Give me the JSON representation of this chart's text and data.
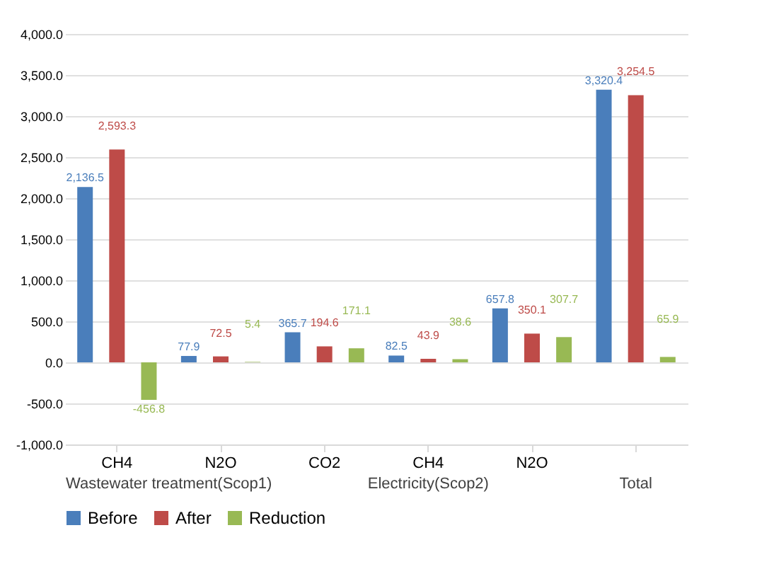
{
  "chart_data": {
    "type": "bar",
    "categories": [
      "CH4",
      "N2O",
      "CO2",
      "CH4",
      "N2O",
      null
    ],
    "series": [
      {
        "name": "Before",
        "color": "#4a7ebb",
        "values": [
          2136.5,
          77.9,
          365.7,
          82.5,
          657.8,
          3320.4
        ],
        "value_labels": [
          "2,136.5",
          "77.9",
          "365.7",
          "82.5",
          "657.8",
          "3,320.4"
        ]
      },
      {
        "name": "After",
        "color": "#be4b48",
        "values": [
          2593.3,
          72.5,
          194.6,
          43.9,
          350.1,
          3254.5
        ],
        "value_labels": [
          "2,593.3",
          "72.5",
          "194.6",
          "43.9",
          "350.1",
          "3,254.5"
        ]
      },
      {
        "name": "Reduction",
        "color": "#98b954",
        "values": [
          -456.8,
          5.4,
          171.1,
          38.6,
          307.7,
          65.9
        ],
        "value_labels": [
          "-456.8",
          "5.4",
          "171.1",
          "38.6",
          "307.7",
          "65.9"
        ]
      }
    ],
    "ylim": [
      -1000,
      4000
    ],
    "yticks": [
      {
        "value": -1000,
        "label": "-1,000.0"
      },
      {
        "value": -500,
        "label": "-500.0"
      },
      {
        "value": 0,
        "label": "0.0"
      },
      {
        "value": 500,
        "label": "500.0"
      },
      {
        "value": 1000,
        "label": "1,000.0"
      },
      {
        "value": 1500,
        "label": "1,500.0"
      },
      {
        "value": 2000,
        "label": "2,000.0"
      },
      {
        "value": 2500,
        "label": "2,500.0"
      },
      {
        "value": 3000,
        "label": "3,000.0"
      },
      {
        "value": 3500,
        "label": "3,500.0"
      },
      {
        "value": 4000,
        "label": "4,000.0"
      }
    ],
    "annotations": [
      "Wastewater treatment(Scop1)",
      "Electricity(Scop2)",
      "Total"
    ],
    "grid": "y",
    "legend": "bottom"
  }
}
